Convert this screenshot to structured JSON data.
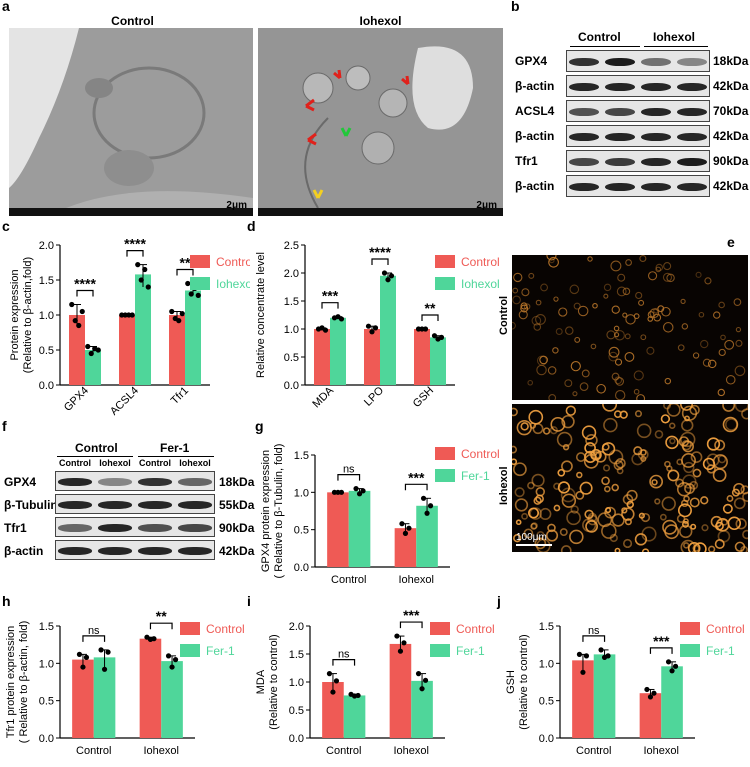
{
  "colors": {
    "control": "#ef5a55",
    "iohexol": "#4fd69a",
    "fer1": "#4fd69a"
  },
  "panels": {
    "a": {
      "letter": "a",
      "titles": [
        "Control",
        "Iohexol"
      ],
      "scale": [
        "2μm",
        "2μm"
      ]
    },
    "b": {
      "letter": "b",
      "header": [
        "Control",
        "Iohexol"
      ],
      "labels": [
        "GPX4",
        "β-actin",
        "ACSL4",
        "β-actin",
        "Tfr1",
        "β-actin"
      ],
      "kda": [
        "18kDa",
        "42kDa",
        "70kDa",
        "42kDa",
        "90kDa",
        "42kDa"
      ]
    },
    "c": {
      "letter": "c"
    },
    "d": {
      "letter": "d"
    },
    "e": {
      "letter": "e",
      "labels": [
        "Control",
        "Iohexol"
      ],
      "scale": "100μm"
    },
    "f": {
      "letter": "f",
      "groups": [
        "Control",
        "Fer-1"
      ],
      "lanes": [
        "Control",
        "Iohexol",
        "Control",
        "Iohexol"
      ],
      "labels": [
        "GPX4",
        "β-Tubulin",
        "Tfr1",
        "β-actin"
      ],
      "kda": [
        "18kDa",
        "55kDa",
        "90kDa",
        "42kDa"
      ]
    },
    "g": {
      "letter": "g"
    },
    "h": {
      "letter": "h"
    },
    "i": {
      "letter": "i"
    },
    "j": {
      "letter": "j"
    }
  },
  "chart_data": [
    {
      "id": "c",
      "type": "bar",
      "categories": [
        "GPX4",
        "ACSL4",
        "Tfr1"
      ],
      "ylabel": "Protein expression\n(Relative to β-actin,fold)",
      "ylim": [
        0,
        2.0
      ],
      "yticks": [
        "0.0",
        "0.5",
        "1.0",
        "1.5",
        "2.0"
      ],
      "series": [
        {
          "name": "Control",
          "values": [
            1.0,
            1.0,
            1.0
          ],
          "points": [
            [
              1.15,
              0.92,
              0.85,
              1.05
            ],
            [
              1.0,
              1.0,
              1.0,
              1.0
            ],
            [
              1.05,
              0.95,
              0.92,
              1.02
            ]
          ]
        },
        {
          "name": "Iohexol",
          "values": [
            0.5,
            1.58,
            1.35
          ],
          "points": [
            [
              0.55,
              0.45,
              0.52,
              0.5
            ],
            [
              1.72,
              1.5,
              1.65,
              1.4
            ],
            [
              1.45,
              1.3,
              1.38,
              1.28
            ]
          ]
        }
      ],
      "significance": [
        "****",
        "****",
        "**"
      ]
    },
    {
      "id": "d",
      "type": "bar",
      "categories": [
        "MDA",
        "LPO",
        "GSH"
      ],
      "ylabel": "Relative concentrate level",
      "ylim": [
        0,
        2.5
      ],
      "yticks": [
        "0.0",
        "0.5",
        "1.0",
        "1.5",
        "2.0",
        "2.5"
      ],
      "series": [
        {
          "name": "Control",
          "values": [
            1.0,
            1.0,
            1.0
          ],
          "points": [
            [
              1.0,
              1.02,
              0.98
            ],
            [
              1.05,
              0.95,
              1.02
            ],
            [
              1.0,
              1.0,
              1.0
            ]
          ]
        },
        {
          "name": "Iohexol",
          "values": [
            1.2,
            1.95,
            0.85
          ],
          "points": [
            [
              1.2,
              1.22,
              1.18
            ],
            [
              2.0,
              1.88,
              1.95
            ],
            [
              0.88,
              0.82,
              0.85
            ]
          ]
        }
      ],
      "significance": [
        "***",
        "****",
        "**"
      ]
    },
    {
      "id": "g",
      "type": "bar",
      "categories": [
        "Control",
        "Iohexol"
      ],
      "ylabel": "GPX4 protein expression\n( Relative to β-Tubulin, fold)",
      "ylim": [
        0,
        1.5
      ],
      "yticks": [
        "0.0",
        "0.5",
        "1.0",
        "1.5"
      ],
      "series": [
        {
          "name": "Control",
          "values": [
            1.0,
            0.52
          ],
          "points": [
            [
              1.0,
              1.0,
              1.0
            ],
            [
              0.58,
              0.45,
              0.52
            ]
          ]
        },
        {
          "name": "Fer-1",
          "values": [
            1.02,
            0.82
          ],
          "points": [
            [
              1.05,
              0.98,
              1.02
            ],
            [
              0.92,
              0.72,
              0.82
            ]
          ]
        }
      ],
      "significance": [
        "ns",
        "***"
      ]
    },
    {
      "id": "h",
      "type": "bar",
      "categories": [
        "Control",
        "Iohexol"
      ],
      "ylabel": "Tfr1 protein expression\n( Relative to β-actin, fold)",
      "ylim": [
        0,
        1.5
      ],
      "yticks": [
        "0.0",
        "0.5",
        "1.0",
        "1.5"
      ],
      "series": [
        {
          "name": "Control",
          "values": [
            1.05,
            1.33
          ],
          "points": [
            [
              1.12,
              0.95,
              1.08
            ],
            [
              1.35,
              1.32,
              1.33
            ]
          ]
        },
        {
          "name": "Fer-1",
          "values": [
            1.08,
            1.03
          ],
          "points": [
            [
              1.18,
              0.92,
              1.15
            ],
            [
              1.1,
              0.95,
              1.05
            ]
          ]
        }
      ],
      "significance": [
        "ns",
        "**"
      ]
    },
    {
      "id": "i",
      "type": "bar",
      "categories": [
        "Control",
        "Iohexol"
      ],
      "ylabel": "MDA\n(Relative to control)",
      "ylim": [
        0,
        2.0
      ],
      "yticks": [
        "0.0",
        "0.5",
        "1.0",
        "1.5",
        "2.0"
      ],
      "series": [
        {
          "name": "Control",
          "values": [
            1.0,
            1.68
          ],
          "points": [
            [
              1.15,
              0.82,
              1.02
            ],
            [
              1.82,
              1.55,
              1.7
            ]
          ]
        },
        {
          "name": "Fer-1",
          "values": [
            0.76,
            1.02
          ],
          "points": [
            [
              0.78,
              0.75,
              0.76
            ],
            [
              1.15,
              0.88,
              1.03
            ]
          ]
        }
      ],
      "significance": [
        "ns",
        "***"
      ]
    },
    {
      "id": "j",
      "type": "bar",
      "categories": [
        "Control",
        "Iohexol"
      ],
      "ylabel": "GSH\n(Relative to control)",
      "ylim": [
        0,
        1.5
      ],
      "yticks": [
        "0.0",
        "0.5",
        "1.0",
        "1.5"
      ],
      "series": [
        {
          "name": "Control",
          "values": [
            1.04,
            0.6
          ],
          "points": [
            [
              1.12,
              0.88,
              1.1
            ],
            [
              0.65,
              0.55,
              0.6
            ]
          ]
        },
        {
          "name": "Fer-1",
          "values": [
            1.12,
            0.96
          ],
          "points": [
            [
              1.18,
              1.08,
              1.1
            ],
            [
              1.02,
              0.9,
              0.96
            ]
          ]
        }
      ],
      "significance": [
        "ns",
        "***"
      ]
    }
  ]
}
